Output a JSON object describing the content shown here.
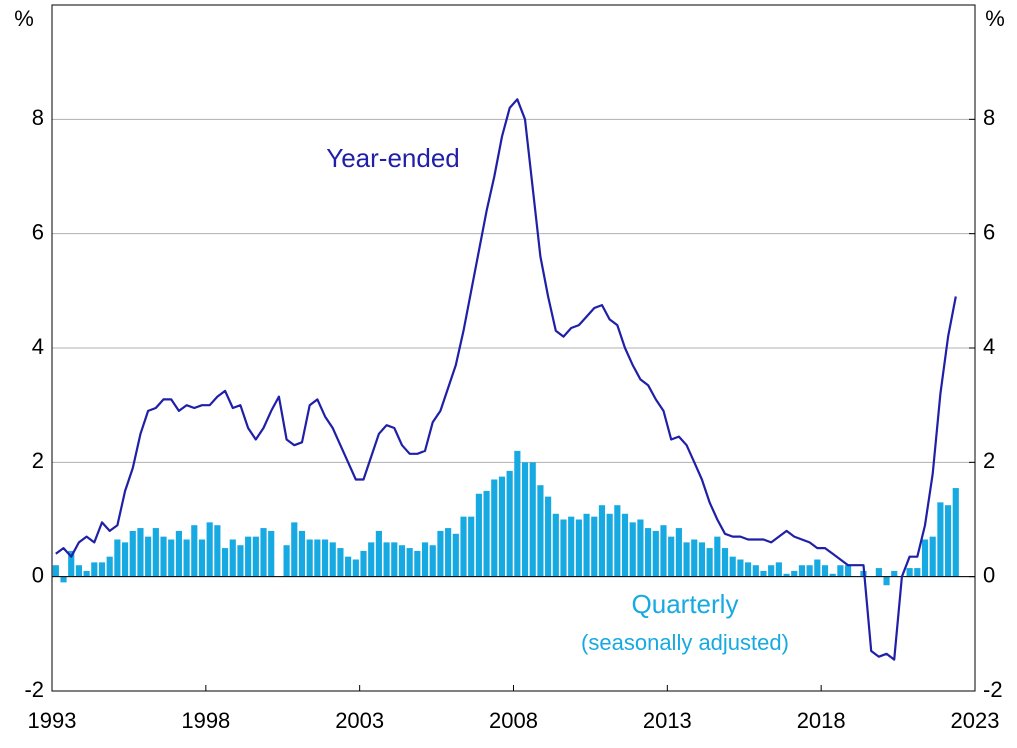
{
  "chart_data": {
    "type": "bar_line",
    "y_unit_left": "%",
    "y_unit_right": "%",
    "annotations": [
      "Year-ended",
      "Quarterly",
      "(seasonally adjusted)"
    ],
    "x": [
      1993,
      1993.25,
      1993.5,
      1993.75,
      1994,
      1994.25,
      1994.5,
      1994.75,
      1995,
      1995.25,
      1995.5,
      1995.75,
      1996,
      1996.25,
      1996.5,
      1996.75,
      1997,
      1997.25,
      1997.5,
      1997.75,
      1998,
      1998.25,
      1998.5,
      1998.75,
      1999,
      1999.25,
      1999.5,
      1999.75,
      2000,
      2000.25,
      2000.5,
      2000.75,
      2001,
      2001.25,
      2001.5,
      2001.75,
      2002,
      2002.25,
      2002.5,
      2002.75,
      2003,
      2003.25,
      2003.5,
      2003.75,
      2004,
      2004.25,
      2004.5,
      2004.75,
      2005,
      2005.25,
      2005.5,
      2005.75,
      2006,
      2006.25,
      2006.5,
      2006.75,
      2007,
      2007.25,
      2007.5,
      2007.75,
      2008,
      2008.25,
      2008.5,
      2008.75,
      2009,
      2009.25,
      2009.5,
      2009.75,
      2010,
      2010.25,
      2010.5,
      2010.75,
      2011,
      2011.25,
      2011.5,
      2011.75,
      2012,
      2012.25,
      2012.5,
      2012.75,
      2013,
      2013.25,
      2013.5,
      2013.75,
      2014,
      2014.25,
      2014.5,
      2014.75,
      2015,
      2015.25,
      2015.5,
      2015.75,
      2016,
      2016.25,
      2016.5,
      2016.75,
      2017,
      2017.25,
      2017.5,
      2017.75,
      2018,
      2018.25,
      2018.5,
      2018.75,
      2019,
      2019.25,
      2019.5,
      2019.75,
      2020,
      2020.25,
      2020.5,
      2020.75,
      2021,
      2021.25,
      2021.5,
      2021.75,
      2022,
      2022.25
    ],
    "series": [
      {
        "name": "Quarterly",
        "kind": "bar",
        "color": "#17a9e1",
        "values": [
          0.2,
          -0.1,
          0.45,
          0.2,
          0.1,
          0.25,
          0.25,
          0.35,
          0.65,
          0.6,
          0.8,
          0.85,
          0.7,
          0.85,
          0.7,
          0.65,
          0.8,
          0.65,
          0.9,
          0.65,
          0.95,
          0.9,
          0.5,
          0.65,
          0.55,
          0.7,
          0.7,
          0.85,
          0.8,
          0,
          0.55,
          0.95,
          0.8,
          0.65,
          0.65,
          0.65,
          0.6,
          0.5,
          0.35,
          0.3,
          0.45,
          0.6,
          0.8,
          0.6,
          0.6,
          0.55,
          0.5,
          0.45,
          0.6,
          0.55,
          0.8,
          0.85,
          0.75,
          1.05,
          1.05,
          1.45,
          1.5,
          1.7,
          1.75,
          1.85,
          2.2,
          2.0,
          2.0,
          1.6,
          1.4,
          1.1,
          1.0,
          1.05,
          1.0,
          1.1,
          1.05,
          1.25,
          1.1,
          1.25,
          1.1,
          0.95,
          1.0,
          0.85,
          0.8,
          0.9,
          0.7,
          0.85,
          0.6,
          0.65,
          0.6,
          0.5,
          0.7,
          0.5,
          0.35,
          0.3,
          0.25,
          0.2,
          0.1,
          0.2,
          0.25,
          0.05,
          0.1,
          0.2,
          0.2,
          0.3,
          0.2,
          0.05,
          0.2,
          0.2,
          0.0,
          0.1,
          0.0,
          0.15,
          -0.15,
          0.1,
          0.0,
          0.15,
          0.15,
          0.65,
          0.7,
          1.3,
          1.25,
          1.55
        ]
      },
      {
        "name": "Year-ended",
        "kind": "line",
        "color": "#1f1fa8",
        "values": [
          0.4,
          0.5,
          0.35,
          0.6,
          0.7,
          0.6,
          0.95,
          0.8,
          0.9,
          1.5,
          1.9,
          2.5,
          2.9,
          2.95,
          3.1,
          3.1,
          2.9,
          3.0,
          2.95,
          3.0,
          3.0,
          3.15,
          3.25,
          2.95,
          3.0,
          2.6,
          2.4,
          2.6,
          2.9,
          3.15,
          2.4,
          2.3,
          2.35,
          3.0,
          3.1,
          2.8,
          2.6,
          2.3,
          2.0,
          1.7,
          1.7,
          2.1,
          2.5,
          2.65,
          2.6,
          2.3,
          2.15,
          2.15,
          2.2,
          2.7,
          2.9,
          3.3,
          3.7,
          4.3,
          5.0,
          5.7,
          6.4,
          7.0,
          7.7,
          8.2,
          8.35,
          8.0,
          6.8,
          5.6,
          4.9,
          4.3,
          4.2,
          4.35,
          4.4,
          4.55,
          4.7,
          4.75,
          4.5,
          4.4,
          4.0,
          3.7,
          3.45,
          3.35,
          3.1,
          2.9,
          2.4,
          2.45,
          2.3,
          2.0,
          1.7,
          1.3,
          1.0,
          0.75,
          0.7,
          0.7,
          0.65,
          0.65,
          0.65,
          0.6,
          0.7,
          0.8,
          0.7,
          0.65,
          0.6,
          0.5,
          0.5,
          0.4,
          0.3,
          0.2,
          0.2,
          0.2,
          -1.3,
          -1.4,
          -1.35,
          -1.45,
          0.0,
          0.35,
          0.35,
          0.9,
          1.8,
          3.2,
          4.2,
          4.9
        ]
      }
    ],
    "xlim": [
      1993,
      2023
    ],
    "xticks": [
      1993,
      1998,
      2003,
      2008,
      2013,
      2018,
      2023
    ],
    "ylim": [
      -2,
      10
    ],
    "yticks": [
      -2,
      0,
      2,
      4,
      6,
      8
    ],
    "y2lim": [
      -2,
      10
    ],
    "y2ticks": [
      -2,
      0,
      2,
      4,
      6,
      8
    ],
    "grid": true
  }
}
